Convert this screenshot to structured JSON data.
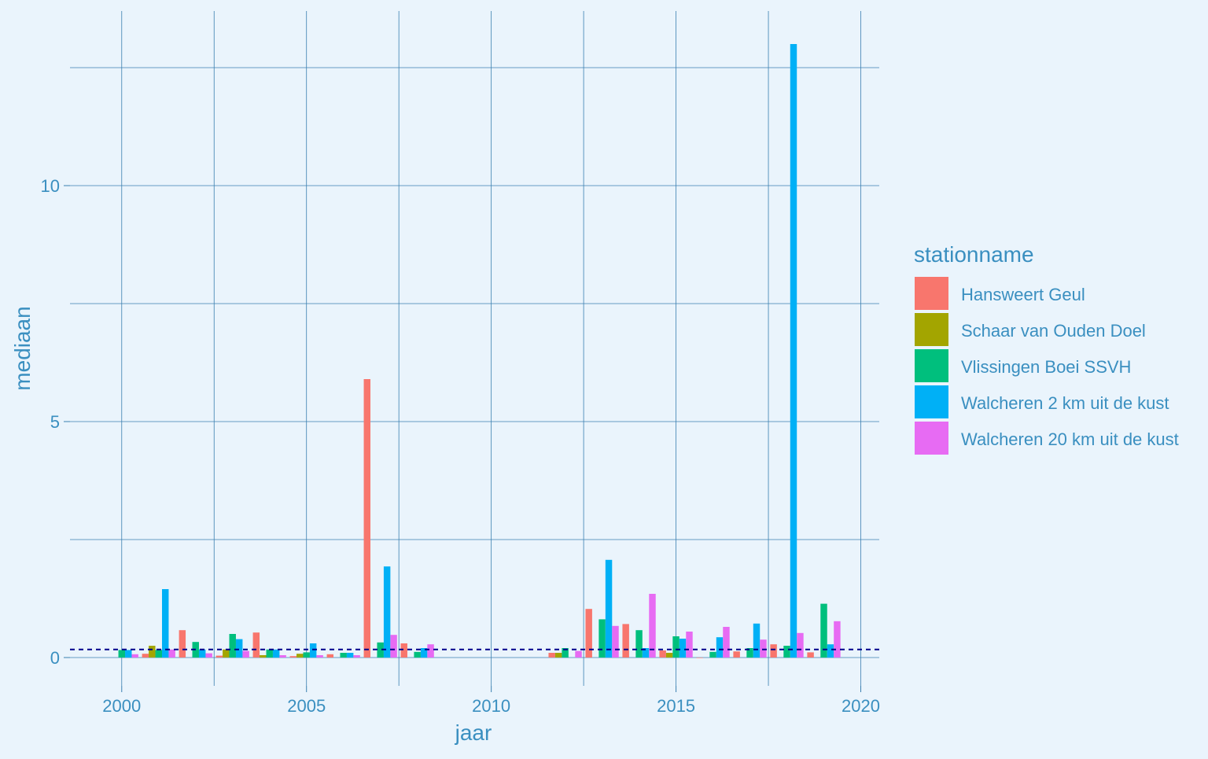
{
  "chart_data": {
    "type": "bar",
    "xlabel": "jaar",
    "ylabel": "mediaan",
    "legend_title": "stationname",
    "legend_position": "right",
    "grid": true,
    "xlim": [
      1998.6,
      2020.5
    ],
    "ylim": [
      -0.6,
      13.7
    ],
    "x_ticks": [
      2000,
      2005,
      2010,
      2015,
      2020
    ],
    "y_ticks": [
      0,
      5,
      10
    ],
    "reference_line": {
      "y": 0.17,
      "style": "dashed",
      "color": "#00008b"
    },
    "colors": {
      "background": "#eaf4fc",
      "grid": "#3a7fb0",
      "text": "#3a8fc0"
    },
    "x": [
      2000,
      2001,
      2002,
      2003,
      2004,
      2005,
      2006,
      2007,
      2008,
      2012,
      2013,
      2014,
      2015,
      2016,
      2017,
      2018,
      2019
    ],
    "series": [
      {
        "name": "Hansweert Geul",
        "color": "#f8766d",
        "values": [
          null,
          0.08,
          0.58,
          0.04,
          0.53,
          0.03,
          0.07,
          5.9,
          0.3,
          0.1,
          1.03,
          0.71,
          0.15,
          0.0,
          0.13,
          0.28,
          0.11
        ]
      },
      {
        "name": "Schaar van Ouden Doel",
        "color": "#a3a500",
        "values": [
          null,
          0.25,
          null,
          0.17,
          0.05,
          0.08,
          null,
          null,
          null,
          0.1,
          null,
          null,
          0.1,
          null,
          null,
          null,
          null
        ]
      },
      {
        "name": "Vlissingen Boei SSVH",
        "color": "#00bf7d",
        "values": [
          0.16,
          0.16,
          0.33,
          0.5,
          0.17,
          0.11,
          0.1,
          0.32,
          0.12,
          0.2,
          0.81,
          0.58,
          0.45,
          0.12,
          0.2,
          0.25,
          1.14
        ]
      },
      {
        "name": "Walcheren 2 km uit de kust",
        "color": "#00b0f6",
        "values": [
          0.16,
          1.45,
          0.17,
          0.39,
          0.17,
          0.3,
          0.1,
          1.93,
          0.2,
          null,
          2.07,
          0.2,
          0.4,
          0.43,
          0.72,
          13.0,
          0.28
        ]
      },
      {
        "name": "Walcheren 20 km uit de kust",
        "color": "#e76bf3",
        "values": [
          0.07,
          0.17,
          0.09,
          0.14,
          0.05,
          0.05,
          0.05,
          0.48,
          0.28,
          0.14,
          0.67,
          1.35,
          0.55,
          0.65,
          0.38,
          0.52,
          0.77
        ]
      }
    ]
  }
}
